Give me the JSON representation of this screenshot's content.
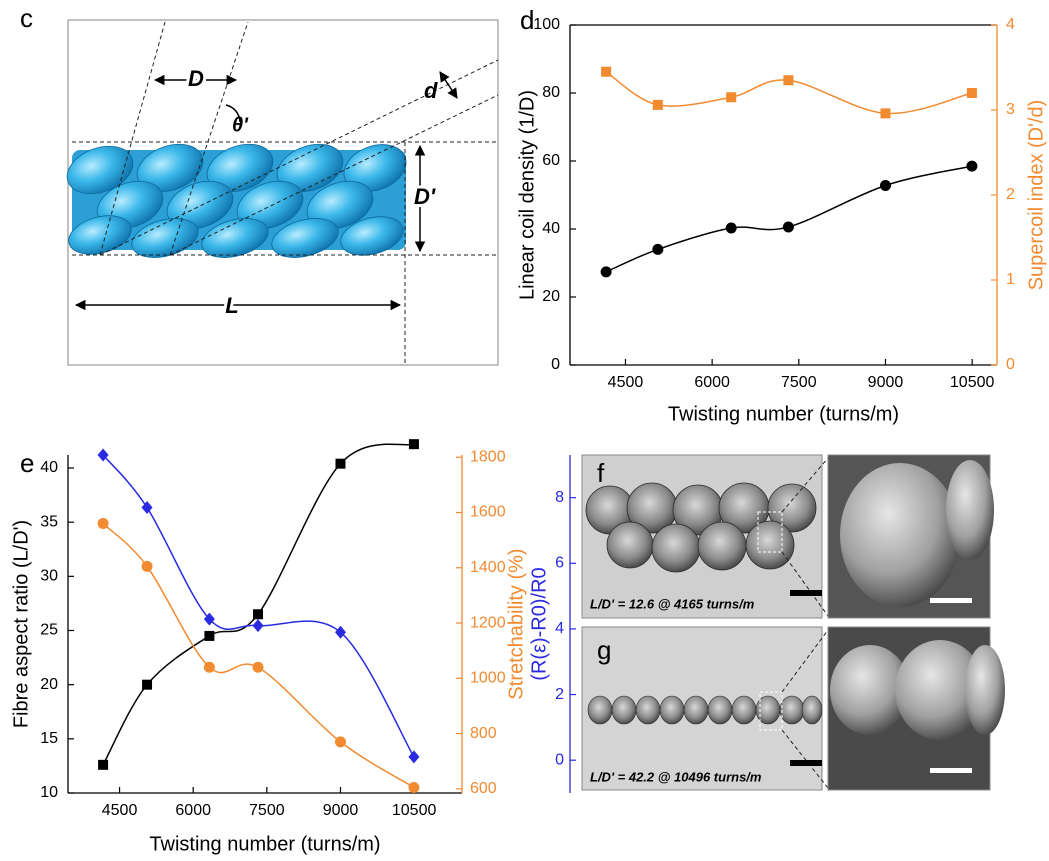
{
  "panels": {
    "c": {
      "label": "c",
      "D": "D",
      "theta": "θ'",
      "d": "d",
      "D_prime": "D'",
      "L": "L"
    },
    "f": {
      "label": "f",
      "caption": "L/D' = 12.6 @ 4165 turns/m"
    },
    "g": {
      "label": "g",
      "caption": "L/D' = 42.2 @ 10496 turns/m"
    }
  },
  "chart_data": [
    {
      "type": "line",
      "label": "d",
      "x": [
        4165,
        5060,
        6330,
        7320,
        9000,
        10496
      ],
      "xlim": [
        3540,
        10930
      ],
      "xticks": [
        4500,
        6000,
        7500,
        9000,
        10500
      ],
      "xlabel": "Twisting number (turns/m)",
      "ylabel": "Linear coil density (1/D)",
      "ylim": [
        0,
        100
      ],
      "yticks": [
        0,
        20,
        40,
        60,
        80,
        100
      ],
      "y2label": "Supercoil index (D'/d)",
      "y2lim": [
        0,
        4
      ],
      "y2ticks": [
        0,
        1,
        2,
        3,
        4
      ],
      "y2color": "#f28a30",
      "grid": false,
      "series": [
        {
          "color": "#000000",
          "marker": "circle",
          "values": [
            27.4,
            34,
            40.3,
            40.6,
            52.8,
            58.5
          ]
        },
        {
          "color": "#f28a30",
          "marker": "square",
          "axis": "y2",
          "values": [
            3.45,
            3.06,
            3.15,
            3.35,
            2.96,
            3.2
          ]
        }
      ]
    },
    {
      "type": "line",
      "label": "e",
      "x": [
        4165,
        5060,
        6330,
        7320,
        9000,
        10496
      ],
      "xlim": [
        3450,
        11475
      ],
      "xticks": [
        4500,
        6000,
        7500,
        9000,
        10500
      ],
      "xlabel": "Twisting number (turns/m)",
      "ylabel": "Fibre aspect ratio (L/D')",
      "ylim": [
        10,
        41.2
      ],
      "yticks": [
        10,
        15,
        20,
        25,
        30,
        35,
        40
      ],
      "y2label": "Stretchability (%)",
      "y2lim": [
        585,
        1808
      ],
      "y2ticks": [
        600,
        800,
        1000,
        1200,
        1400,
        1600,
        1800
      ],
      "y2color": "#f28a30",
      "y3label": "(R(ε)-R0)/R0",
      "y3lim": [
        -1,
        9.3
      ],
      "y3ticks": [
        0,
        2,
        4,
        6,
        8
      ],
      "y3color": "#2a2ae0",
      "grid": false,
      "series": [
        {
          "color": "#000000",
          "marker": "square",
          "values": [
            12.6,
            20,
            24.5,
            26.5,
            40.4,
            42.2
          ]
        },
        {
          "color": "#f28a30",
          "marker": "circle",
          "axis": "y2",
          "values": [
            1560,
            1405,
            1040,
            1040,
            770,
            605
          ]
        },
        {
          "color": "#2a2ae0",
          "marker": "diamond",
          "axis": "y3",
          "values": [
            9.3,
            7.7,
            4.3,
            4.1,
            3.9,
            0.1
          ]
        }
      ]
    }
  ]
}
